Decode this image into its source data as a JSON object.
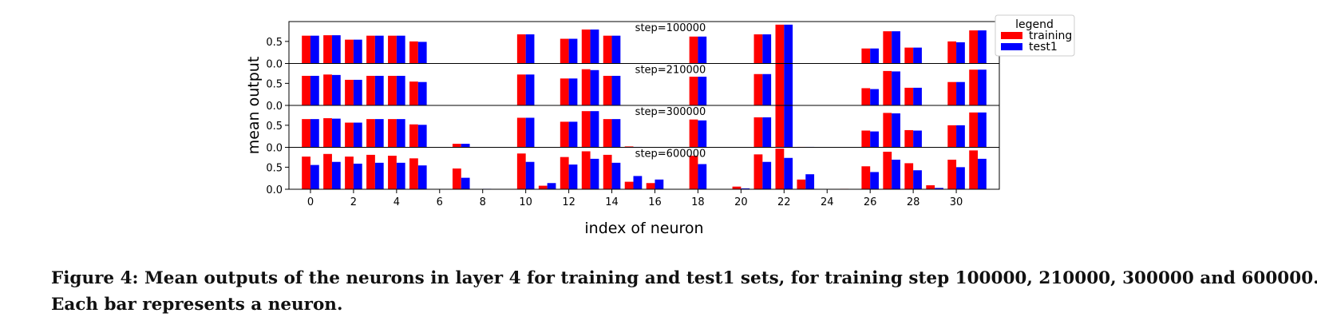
{
  "figure": {
    "caption_line1": "Figure 4: Mean outputs of the neurons in layer 4 for training and test1 sets, for training step 100000, 210000, 300000 and 600000.",
    "caption_line2": "Each bar represents a neuron."
  },
  "chart_data": {
    "type": "bar",
    "xlabel": "index of neuron",
    "ylabel": "mean output",
    "x_ticks": [
      0,
      2,
      4,
      6,
      8,
      10,
      12,
      14,
      16,
      18,
      20,
      22,
      24,
      26,
      28,
      30
    ],
    "xlim": [
      -1,
      32
    ],
    "ylim": [
      0,
      0.95
    ],
    "y_ticks": [
      0.0,
      0.5
    ],
    "legend": {
      "title": "legend",
      "placement": "top-right"
    },
    "series_colors": {
      "training": "#ff0000",
      "test1": "#0000ff"
    },
    "panels": [
      {
        "title": "step=100000",
        "series": [
          {
            "name": "training",
            "values": [
              0.63,
              0.64,
              0.54,
              0.63,
              0.63,
              0.5,
              0,
              0,
              0,
              0,
              0.66,
              0,
              0.56,
              0.77,
              0.63,
              0,
              0,
              0,
              0.61,
              0,
              0,
              0.66,
              0.88,
              0,
              0,
              0,
              0.34,
              0.73,
              0.36,
              0,
              0.5,
              0.75
            ]
          },
          {
            "name": "test1",
            "values": [
              0.63,
              0.64,
              0.54,
              0.63,
              0.63,
              0.49,
              0,
              0,
              0,
              0,
              0.66,
              0,
              0.56,
              0.77,
              0.63,
              0,
              0,
              0,
              0.61,
              0,
              0,
              0.66,
              0.88,
              0,
              0,
              0,
              0.34,
              0.73,
              0.36,
              0,
              0.48,
              0.75
            ]
          }
        ]
      },
      {
        "title": "step=210000",
        "series": [
          {
            "name": "training",
            "values": [
              0.67,
              0.7,
              0.58,
              0.67,
              0.67,
              0.54,
              0,
              0,
              0,
              0,
              0.7,
              0,
              0.61,
              0.82,
              0.67,
              0,
              0,
              0,
              0.65,
              0,
              0,
              0.71,
              0.95,
              0,
              0,
              0,
              0.39,
              0.78,
              0.4,
              0,
              0.53,
              0.81
            ]
          },
          {
            "name": "test1",
            "values": [
              0.67,
              0.69,
              0.58,
              0.67,
              0.67,
              0.53,
              0,
              0,
              0,
              0,
              0.7,
              0,
              0.61,
              0.8,
              0.67,
              0,
              0,
              0,
              0.65,
              0,
              0,
              0.71,
              0.95,
              0,
              0,
              0,
              0.37,
              0.77,
              0.4,
              0,
              0.53,
              0.81
            ]
          }
        ]
      },
      {
        "title": "step=300000",
        "series": [
          {
            "name": "training",
            "values": [
              0.64,
              0.66,
              0.56,
              0.64,
              0.64,
              0.52,
              0,
              0.08,
              0,
              0,
              0.67,
              0,
              0.58,
              0.82,
              0.64,
              0.02,
              0,
              0,
              0.63,
              0,
              0,
              0.68,
              0.95,
              0.01,
              0,
              0,
              0.38,
              0.78,
              0.39,
              0,
              0.5,
              0.79
            ]
          },
          {
            "name": "test1",
            "values": [
              0.64,
              0.65,
              0.56,
              0.64,
              0.64,
              0.51,
              0,
              0.08,
              0,
              0,
              0.67,
              0,
              0.58,
              0.82,
              0.64,
              0.01,
              0,
              0,
              0.61,
              0,
              0,
              0.68,
              0.95,
              0.01,
              0,
              0,
              0.36,
              0.77,
              0.38,
              0,
              0.5,
              0.79
            ]
          }
        ]
      },
      {
        "title": "step=600000",
        "series": [
          {
            "name": "training",
            "values": [
              0.74,
              0.8,
              0.74,
              0.78,
              0.76,
              0.7,
              0,
              0.47,
              0,
              0,
              0.81,
              0.08,
              0.73,
              0.86,
              0.78,
              0.17,
              0.14,
              0,
              0.76,
              0,
              0.06,
              0.79,
              0.92,
              0.22,
              0,
              0.01,
              0.52,
              0.85,
              0.59,
              0.09,
              0.67,
              0.88
            ]
          },
          {
            "name": "test1",
            "values": [
              0.55,
              0.62,
              0.58,
              0.6,
              0.6,
              0.54,
              0,
              0.26,
              0.01,
              0,
              0.62,
              0.14,
              0.56,
              0.69,
              0.6,
              0.3,
              0.22,
              0,
              0.57,
              0,
              0.02,
              0.62,
              0.71,
              0.34,
              0,
              0,
              0.39,
              0.67,
              0.43,
              0.03,
              0.5,
              0.69
            ]
          }
        ]
      }
    ]
  }
}
